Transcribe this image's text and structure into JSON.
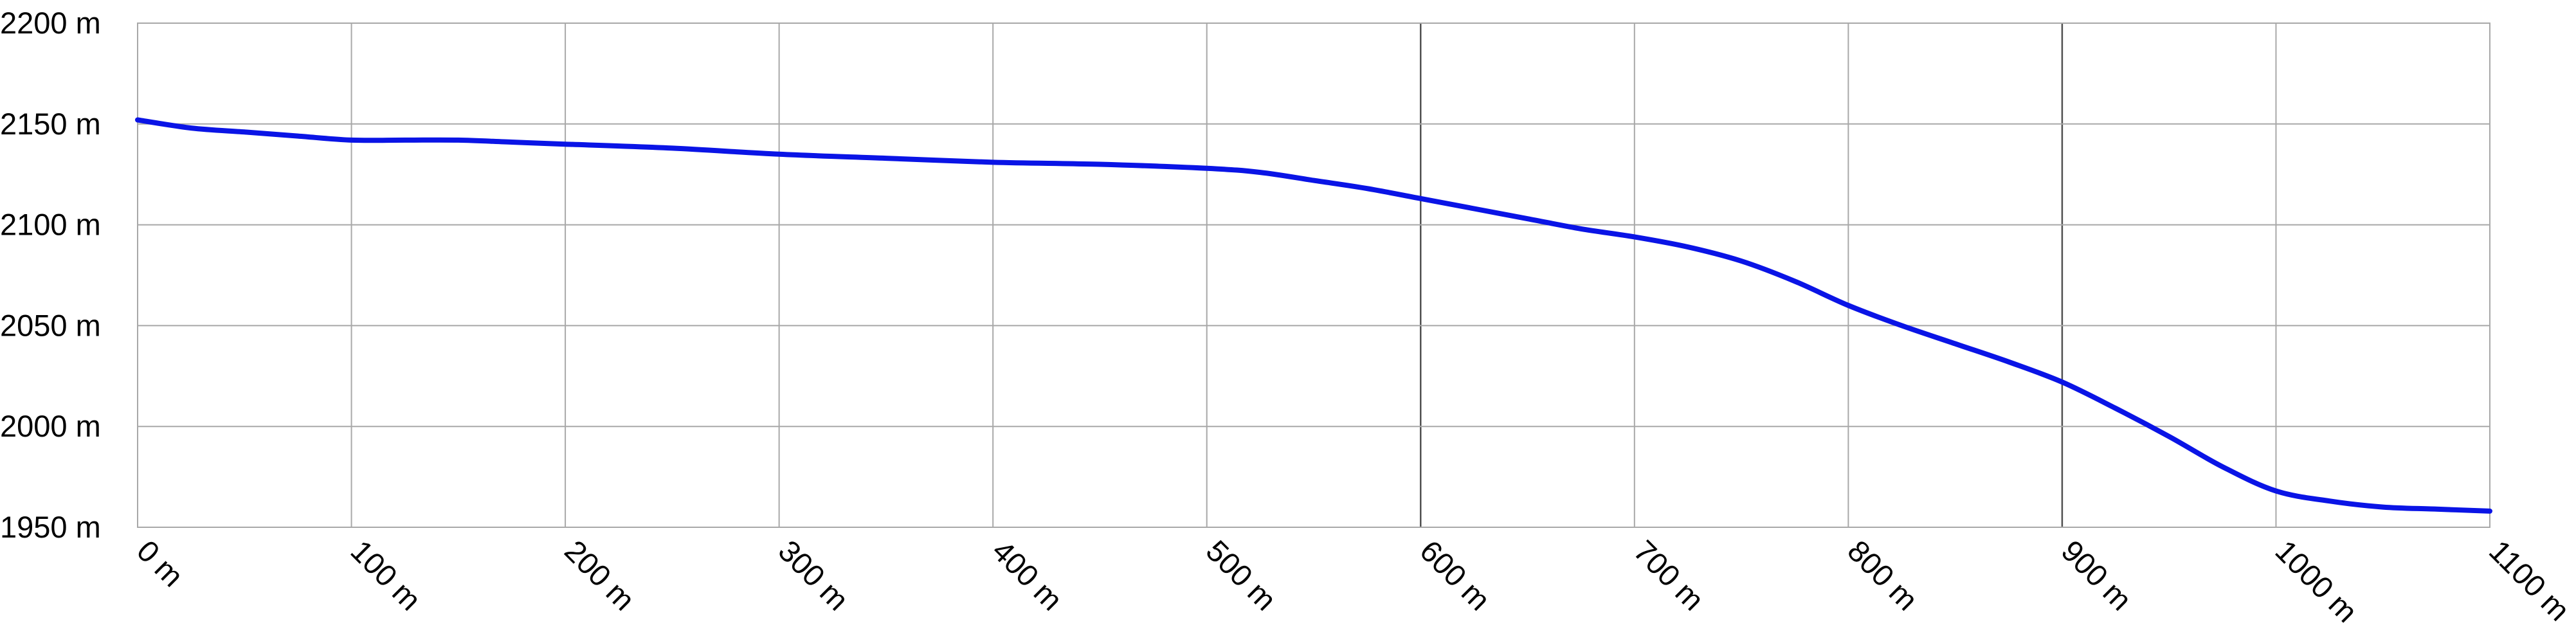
{
  "chart_data": {
    "type": "line",
    "title": "",
    "xlabel": "",
    "ylabel": "",
    "xlim": [
      0,
      1100
    ],
    "ylim": [
      1950,
      2200
    ],
    "x_ticks": [
      0,
      100,
      200,
      300,
      400,
      500,
      600,
      700,
      800,
      900,
      1000,
      1100
    ],
    "x_tick_labels": [
      "0 m",
      "100 m",
      "200 m",
      "300 m",
      "400 m",
      "500 m",
      "600 m",
      "700 m",
      "800 m",
      "900 m",
      "1000 m",
      "1100 m"
    ],
    "y_ticks": [
      1950,
      2000,
      2050,
      2100,
      2150,
      2200
    ],
    "y_tick_labels": [
      "1950 m",
      "2000 m",
      "2050 m",
      "2100 m",
      "2150 m",
      "2200 m"
    ],
    "major_x_ticks": [
      600,
      900
    ],
    "grid": true,
    "legend": "none",
    "series": [
      {
        "color": "#0a14e6",
        "x": [
          0,
          25,
          50,
          75,
          100,
          125,
          150,
          175,
          200,
          250,
          300,
          350,
          400,
          450,
          500,
          525,
          550,
          575,
          600,
          625,
          650,
          675,
          700,
          725,
          750,
          775,
          800,
          825,
          850,
          875,
          900,
          925,
          950,
          975,
          1000,
          1025,
          1050,
          1075,
          1100
        ],
        "y": [
          2152,
          2148,
          2146,
          2144,
          2142,
          2142,
          2142,
          2141,
          2140,
          2138,
          2135,
          2133,
          2131,
          2130,
          2128,
          2126,
          2122,
          2118,
          2113,
          2108,
          2103,
          2098,
          2094,
          2089,
          2082,
          2072,
          2060,
          2050,
          2041,
          2032,
          2022,
          2009,
          1995,
          1980,
          1968,
          1963,
          1960,
          1959,
          1958
        ]
      }
    ]
  }
}
